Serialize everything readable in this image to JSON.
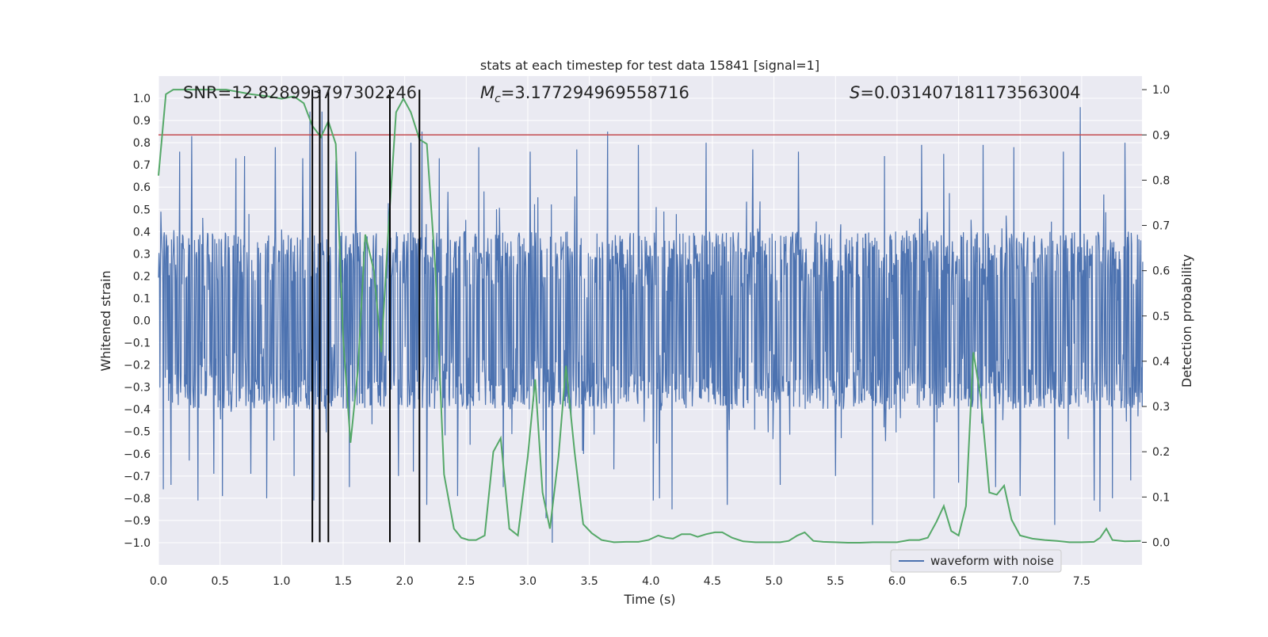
{
  "chart_data": {
    "type": "line",
    "title": "stats at each timestep for test data 15841 [signal=1]",
    "xlabel": "Time (s)",
    "ylabel": "Whitened strain",
    "y2label": "Detection probability",
    "xlim": [
      0.0,
      7.99
    ],
    "ylim": [
      -1.1,
      1.1
    ],
    "y2lim": [
      -0.05,
      1.03
    ],
    "x_ticks": [
      0.0,
      0.5,
      1.0,
      1.5,
      2.0,
      2.5,
      3.0,
      3.5,
      4.0,
      4.5,
      5.0,
      5.5,
      6.0,
      6.5,
      7.0,
      7.5
    ],
    "x_tick_labels": [
      "0.0",
      "0.5",
      "1.0",
      "1.5",
      "2.0",
      "2.5",
      "3.0",
      "3.5",
      "4.0",
      "4.5",
      "5.0",
      "5.5",
      "6.0",
      "6.5",
      "7.0",
      "7.5"
    ],
    "y_ticks": [
      1.0,
      0.9,
      0.8,
      0.7,
      0.6,
      0.5,
      0.4,
      0.3,
      0.2,
      0.1,
      0.0,
      -0.1,
      -0.2,
      -0.3,
      -0.4,
      -0.5,
      -0.6,
      -0.7,
      -0.8,
      -0.9,
      -1.0
    ],
    "y_tick_labels": [
      "1.0",
      "0.9",
      "0.8",
      "0.7",
      "0.6",
      "0.5",
      "0.4",
      "0.3",
      "0.2",
      "0.1",
      "0.0",
      "−0.1",
      "−0.2",
      "−0.3",
      "−0.4",
      "−0.5",
      "−0.6",
      "−0.7",
      "−0.8",
      "−0.9",
      "−1.0"
    ],
    "y2_ticks": [
      1.0,
      0.9,
      0.8,
      0.7,
      0.6,
      0.5,
      0.4,
      0.3,
      0.2,
      0.1,
      0.0
    ],
    "y2_tick_labels": [
      "1.0",
      "0.9",
      "0.8",
      "0.7",
      "0.6",
      "0.5",
      "0.4",
      "0.3",
      "0.2",
      "0.1",
      "0.0"
    ],
    "annotations": {
      "snr": "SNR=12.828993797302246",
      "mc_symbol": "M",
      "mc_sub": "c",
      "mc_value": "=3.177294969558716",
      "s_symbol": "S",
      "s_value": "=0.031407181173563004"
    },
    "legend": {
      "label": "waveform with noise",
      "loc": "lower-right"
    },
    "threshold": {
      "value": 0.9,
      "axis": "y2"
    },
    "detection_vlines": [
      1.25,
      1.31,
      1.38,
      1.88,
      2.12
    ],
    "waveform": {
      "name": "waveform with noise",
      "sample_rate_hz": 256,
      "duration_s": 8,
      "envelope": 0.4,
      "peaks": [
        [
          0.02,
          0.49
        ],
        [
          0.04,
          -0.76
        ],
        [
          0.1,
          -0.74
        ],
        [
          0.17,
          0.76
        ],
        [
          0.25,
          -0.63
        ],
        [
          0.27,
          0.83
        ],
        [
          0.32,
          -0.81
        ],
        [
          0.45,
          -0.69
        ],
        [
          0.52,
          -0.79
        ],
        [
          0.63,
          0.73
        ],
        [
          0.7,
          0.74
        ],
        [
          0.75,
          -0.69
        ],
        [
          0.88,
          -0.8
        ],
        [
          0.95,
          0.78
        ],
        [
          1.1,
          -0.7
        ],
        [
          1.17,
          0.73
        ],
        [
          1.23,
          0.94
        ],
        [
          1.26,
          -0.81
        ],
        [
          1.33,
          0.94
        ],
        [
          1.44,
          0.72
        ],
        [
          1.55,
          -0.75
        ],
        [
          1.6,
          0.76
        ],
        [
          1.95,
          -0.7
        ],
        [
          2.05,
          0.8
        ],
        [
          2.07,
          -0.68
        ],
        [
          2.14,
          0.85
        ],
        [
          2.18,
          -0.83
        ],
        [
          2.28,
          0.73
        ],
        [
          2.43,
          -0.79
        ],
        [
          2.6,
          0.78
        ],
        [
          2.8,
          -0.75
        ],
        [
          3.02,
          0.76
        ],
        [
          3.15,
          -0.89
        ],
        [
          3.2,
          -1.0
        ],
        [
          3.4,
          0.77
        ],
        [
          3.65,
          0.85
        ],
        [
          3.7,
          -0.67
        ],
        [
          3.9,
          0.79
        ],
        [
          4.02,
          -0.81
        ],
        [
          4.07,
          -0.8
        ],
        [
          4.17,
          -0.85
        ],
        [
          4.45,
          0.8
        ],
        [
          4.62,
          -0.83
        ],
        [
          4.83,
          0.77
        ],
        [
          5.05,
          -0.74
        ],
        [
          5.2,
          0.76
        ],
        [
          5.5,
          -0.7
        ],
        [
          5.8,
          -0.92
        ],
        [
          5.9,
          0.74
        ],
        [
          6.2,
          0.79
        ],
        [
          6.3,
          -0.8
        ],
        [
          6.38,
          0.75
        ],
        [
          6.5,
          -0.73
        ],
        [
          6.7,
          0.79
        ],
        [
          6.8,
          -0.75
        ],
        [
          6.95,
          0.78
        ],
        [
          7.0,
          -0.79
        ],
        [
          7.28,
          -0.92
        ],
        [
          7.35,
          0.76
        ],
        [
          7.49,
          0.96
        ],
        [
          7.6,
          -0.81
        ],
        [
          7.65,
          -0.86
        ],
        [
          7.75,
          -0.8
        ],
        [
          7.85,
          0.8
        ],
        [
          7.9,
          -0.72
        ]
      ]
    },
    "probability": {
      "name": "detection probability",
      "x": [
        0.0,
        0.06,
        0.12,
        0.18,
        0.25,
        0.4,
        0.55,
        0.65,
        0.75,
        0.9,
        1.0,
        1.1,
        1.18,
        1.25,
        1.32,
        1.38,
        1.44,
        1.5,
        1.56,
        1.62,
        1.68,
        1.75,
        1.81,
        1.87,
        1.93,
        1.99,
        2.05,
        2.12,
        2.18,
        2.25,
        2.32,
        2.4,
        2.46,
        2.52,
        2.58,
        2.65,
        2.72,
        2.78,
        2.85,
        2.92,
        3.0,
        3.06,
        3.12,
        3.18,
        3.25,
        3.31,
        3.38,
        3.45,
        3.52,
        3.6,
        3.7,
        3.8,
        3.9,
        3.98,
        4.06,
        4.12,
        4.18,
        4.25,
        4.32,
        4.38,
        4.45,
        4.52,
        4.58,
        4.66,
        4.75,
        4.85,
        4.95,
        5.05,
        5.12,
        5.19,
        5.25,
        5.32,
        5.4,
        5.5,
        5.6,
        5.7,
        5.8,
        5.9,
        6.0,
        6.1,
        6.18,
        6.25,
        6.32,
        6.38,
        6.44,
        6.5,
        6.56,
        6.62,
        6.68,
        6.75,
        6.81,
        6.87,
        6.93,
        7.0,
        7.1,
        7.2,
        7.3,
        7.4,
        7.5,
        7.6,
        7.65,
        7.7,
        7.75,
        7.85,
        7.98
      ],
      "y": [
        0.81,
        0.99,
        1.0,
        1.0,
        1.0,
        1.0,
        1.0,
        0.995,
        0.99,
        0.985,
        0.98,
        0.985,
        0.97,
        0.92,
        0.895,
        0.93,
        0.88,
        0.45,
        0.22,
        0.38,
        0.68,
        0.6,
        0.42,
        0.7,
        0.95,
        0.98,
        0.95,
        0.89,
        0.88,
        0.6,
        0.15,
        0.03,
        0.01,
        0.005,
        0.005,
        0.015,
        0.2,
        0.23,
        0.03,
        0.015,
        0.19,
        0.36,
        0.11,
        0.03,
        0.19,
        0.39,
        0.2,
        0.04,
        0.02,
        0.005,
        0.0,
        0.001,
        0.001,
        0.005,
        0.015,
        0.01,
        0.008,
        0.018,
        0.018,
        0.012,
        0.018,
        0.022,
        0.022,
        0.01,
        0.002,
        0.0,
        0.0,
        0.0,
        0.003,
        0.015,
        0.022,
        0.003,
        0.001,
        0.0,
        -0.001,
        -0.001,
        0.0,
        0.0,
        0.0,
        0.005,
        0.005,
        0.01,
        0.045,
        0.08,
        0.025,
        0.015,
        0.08,
        0.42,
        0.32,
        0.11,
        0.105,
        0.125,
        0.05,
        0.015,
        0.008,
        0.005,
        0.003,
        0.0,
        0.0,
        0.001,
        0.01,
        0.03,
        0.005,
        0.002,
        0.003
      ]
    },
    "colors": {
      "background": "#eaeaf2",
      "grid": "#ffffff",
      "waveform": "#4c72b0",
      "probability": "#55a868",
      "threshold": "#c44e52",
      "vline": "#000000",
      "text": "#262626"
    }
  }
}
